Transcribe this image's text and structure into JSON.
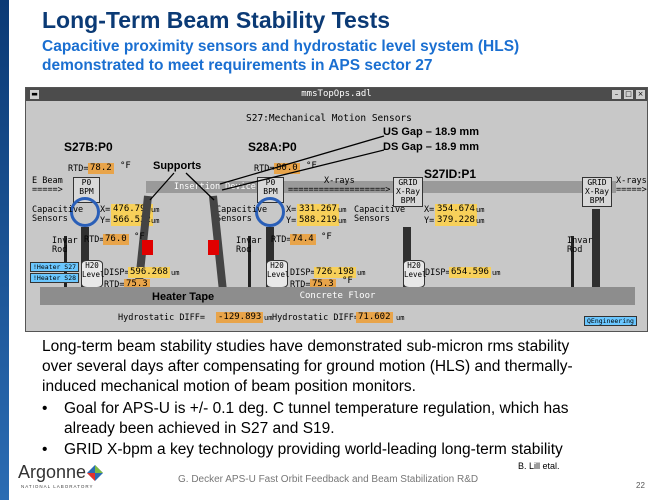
{
  "slide": {
    "title": "Long-Term Beam Stability Tests",
    "subtitle_line1": "Capacitive proximity sensors and hydrostatic level system (HLS)",
    "subtitle_line2": "demonstrated to meet requirements in APS sector 27",
    "body_line1": "Long-term beam stability studies have demonstrated sub-micron rms stability",
    "body_line2": "over several days after compensating for ground motion (HLS) and thermally-",
    "body_line3": "induced mechanical motion of beam position monitors.",
    "bullet1_line1": "Goal for APS-U is +/- 0.1 deg. C tunnel temperature regulation, which has",
    "bullet1_line2": "already been achieved in S27 and S19.",
    "bullet2": "GRID X-bpm a key technology providing world-leading long-term stability",
    "credit": "B. Lill etal.",
    "footer": "G. Decker APS-U Fast Orbit Feedback and Beam Stabilization R&D",
    "page_number": "22",
    "logo_text": "Argonne",
    "logo_sub": "NATIONAL LABORATORY",
    "bullet_glyph": "•"
  },
  "window": {
    "title": "mmsTopOps.adl",
    "heading": "S27:Mechanical Motion Sensors",
    "btn_min": "–",
    "btn_max": "□",
    "btn_close": "×"
  },
  "annotations": {
    "s27b": "S27B:P0",
    "s28a": "S28A:P0",
    "s27id": "S27ID:P1",
    "us_gap": "US Gap – 18.9 mm",
    "ds_gap": "DS Gap – 18.9 mm",
    "supports": "Supports",
    "heater_tape": "Heater Tape"
  },
  "schematic": {
    "e_beam": "E Beam",
    "e_beam_arrow": "=====>",
    "xrays_mid": "X-rays",
    "xrays_mid_arrow": "===================>",
    "xrays_right": "X-rays",
    "xrays_right_arrow": "=====>",
    "insertion_device": "Insertion Device",
    "concrete_floor": "Concrete Floor",
    "p0_bpm_1": "P0\nBPM",
    "p0_bpm_2": "P0\nBPM",
    "grid_xray_bpm_1": "GRID\nX-Ray\nBPM",
    "grid_xray_bpm_2": "GRID\nX-Ray\nBPM",
    "capacitive_sensors": "Capacitive\nSensors",
    "invar_rod": "Invar\nRod",
    "h2o_level": "H20\nLevel",
    "heater_s27": "!Heater S27",
    "heater_s28": "!Heater S28",
    "engineering_button": "QEngineering",
    "hydrostatic_diff_label": "Hydrostatic DIFF=",
    "unit_um": "um",
    "unit_f": "°F"
  },
  "readings": {
    "rtd_top_1": "78.2",
    "rtd_top_2": "80.0",
    "x_1": "476.790",
    "y_1": "566.532",
    "x_2": "331.267",
    "y_2": "588.219",
    "x_3": "354.674",
    "y_3": "379.228",
    "rtd_mid_1": "76.0",
    "rtd_mid_2": "74.4",
    "disp_1": "596.268",
    "disp_2": "726.198",
    "disp_3": "654.596",
    "rtd_bot_1": "75.3",
    "rtd_bot_2": "75.3",
    "hydro_diff_1": "-129.893",
    "hydro_diff_2": "71.602"
  },
  "colors": {
    "title": "#0b3a75",
    "subtitle": "#1a6fd1",
    "value_box": "#e8a44a",
    "heater": "#e00000",
    "blue_ring": "#2a5fb8"
  }
}
